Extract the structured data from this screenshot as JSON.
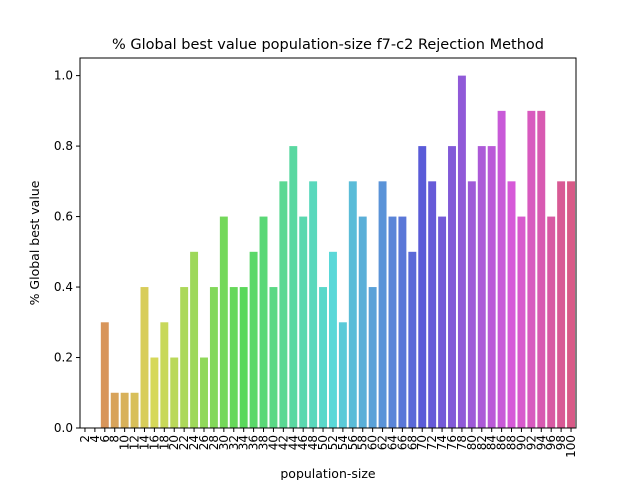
{
  "chart_data": {
    "type": "bar",
    "title": "% Global best value population-size f7-c2 Rejection Method",
    "xlabel": "population-size",
    "ylabel": "% Global best value",
    "ylim": [
      0,
      1.05
    ],
    "yticks": [
      "0.0",
      "0.2",
      "0.4",
      "0.6",
      "0.8",
      "1.0"
    ],
    "grid": false,
    "categories": [
      "2",
      "4",
      "6",
      "8",
      "10",
      "12",
      "14",
      "16",
      "18",
      "20",
      "22",
      "24",
      "26",
      "28",
      "30",
      "32",
      "34",
      "36",
      "38",
      "40",
      "42",
      "44",
      "46",
      "48",
      "50",
      "52",
      "54",
      "56",
      "58",
      "60",
      "62",
      "64",
      "66",
      "68",
      "70",
      "72",
      "74",
      "76",
      "78",
      "80",
      "82",
      "84",
      "86",
      "88",
      "90",
      "92",
      "94",
      "96",
      "98",
      "100"
    ],
    "values": [
      0,
      0,
      0.3,
      0.1,
      0.1,
      0.1,
      0.4,
      0.2,
      0.3,
      0.2,
      0.4,
      0.5,
      0.2,
      0.4,
      0.6,
      0.4,
      0.4,
      0.5,
      0.6,
      0.4,
      0.7,
      0.8,
      0.6,
      0.7,
      0.4,
      0.5,
      0.3,
      0.7,
      0.6,
      0.4,
      0.7,
      0.6,
      0.6,
      0.5,
      0.8,
      0.7,
      0.6,
      0.8,
      1.0,
      0.7,
      0.8,
      0.8,
      0.9,
      0.7,
      0.6,
      0.9,
      0.9,
      0.6,
      0.7,
      0.7
    ]
  }
}
